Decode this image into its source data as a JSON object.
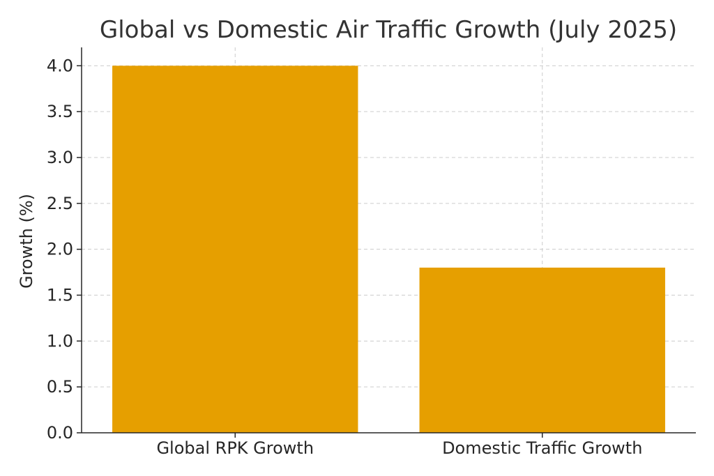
{
  "chart_data": {
    "type": "bar",
    "title": "Global vs Domestic Air Traffic Growth (July 2025)",
    "xlabel": "",
    "ylabel": "Growth (%)",
    "categories": [
      "Global RPK Growth",
      "Domestic Traffic Growth"
    ],
    "values": [
      4.0,
      1.8
    ],
    "ylim": [
      0,
      4.2
    ],
    "yticks": [
      "0.0",
      "0.5",
      "1.0",
      "1.5",
      "2.0",
      "2.5",
      "3.0",
      "3.5",
      "4.0"
    ],
    "grid": true,
    "bar_color": "#e69f00"
  }
}
